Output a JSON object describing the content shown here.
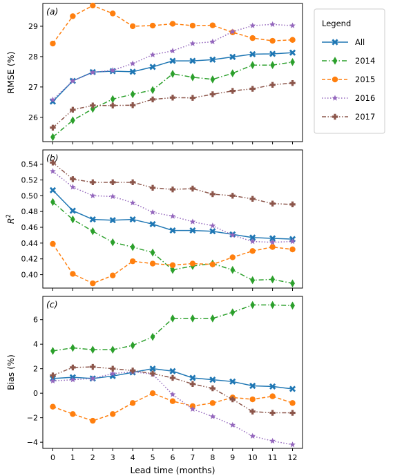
{
  "legend": {
    "title": "Legend"
  },
  "chart_data": [
    {
      "type": "line",
      "panel_label": "(a)",
      "ylabel": "RMSE (%)",
      "xlabel": "",
      "x": [
        0,
        1,
        2,
        3,
        4,
        5,
        6,
        7,
        8,
        9,
        10,
        11,
        12
      ],
      "ylim": [
        25.2,
        29.75
      ],
      "yticks": [
        26,
        27,
        28,
        29
      ],
      "xticks_labeled": false,
      "series": [
        {
          "name": "All",
          "values": [
            26.52,
            27.2,
            27.49,
            27.52,
            27.5,
            27.66,
            27.86,
            27.86,
            27.9,
            27.99,
            28.08,
            28.09,
            28.13
          ]
        },
        {
          "name": "2014",
          "values": [
            25.35,
            25.9,
            26.28,
            26.6,
            26.76,
            26.9,
            27.43,
            27.32,
            27.25,
            27.45,
            27.72,
            27.72,
            27.82
          ]
        },
        {
          "name": "2015",
          "values": [
            28.43,
            29.33,
            29.68,
            29.42,
            29.0,
            29.02,
            29.08,
            29.02,
            29.03,
            28.8,
            28.61,
            28.52,
            28.55
          ]
        },
        {
          "name": "2016",
          "values": [
            26.58,
            27.2,
            27.48,
            27.55,
            27.77,
            28.06,
            28.19,
            28.43,
            28.49,
            28.82,
            29.02,
            29.06,
            29.02
          ]
        },
        {
          "name": "2017",
          "values": [
            25.66,
            26.25,
            26.39,
            26.39,
            26.4,
            26.59,
            26.65,
            26.64,
            26.76,
            26.87,
            26.94,
            27.07,
            27.13
          ]
        }
      ]
    },
    {
      "type": "line",
      "panel_label": "(b)",
      "ylabel": "R²",
      "xlabel": "",
      "x": [
        0,
        1,
        2,
        3,
        4,
        5,
        6,
        7,
        8,
        9,
        10,
        11,
        12
      ],
      "ylim": [
        0.383,
        0.558
      ],
      "yticks": [
        0.4,
        0.42,
        0.44,
        0.46,
        0.48,
        0.5,
        0.52,
        0.54
      ],
      "ytick_labels": [
        "0.40",
        "0.42",
        "0.44",
        "0.46",
        "0.48",
        "0.50",
        "0.52",
        "0.54"
      ],
      "xticks_labeled": false,
      "series": [
        {
          "name": "All",
          "values": [
            0.507,
            0.481,
            0.47,
            0.469,
            0.47,
            0.464,
            0.456,
            0.456,
            0.455,
            0.451,
            0.447,
            0.446,
            0.445
          ]
        },
        {
          "name": "2014",
          "values": [
            0.492,
            0.47,
            0.455,
            0.441,
            0.435,
            0.428,
            0.406,
            0.411,
            0.414,
            0.406,
            0.393,
            0.394,
            0.389
          ]
        },
        {
          "name": "2015",
          "values": [
            0.439,
            0.401,
            0.389,
            0.399,
            0.417,
            0.414,
            0.412,
            0.414,
            0.413,
            0.422,
            0.43,
            0.435,
            0.432
          ]
        },
        {
          "name": "2016",
          "values": [
            0.531,
            0.511,
            0.5,
            0.499,
            0.491,
            0.479,
            0.474,
            0.467,
            0.462,
            0.45,
            0.442,
            0.441,
            0.442
          ]
        },
        {
          "name": "2017",
          "values": [
            0.542,
            0.521,
            0.517,
            0.517,
            0.517,
            0.51,
            0.508,
            0.509,
            0.502,
            0.5,
            0.496,
            0.49,
            0.489
          ]
        }
      ]
    },
    {
      "type": "line",
      "panel_label": "(c)",
      "ylabel": "Bias (%)",
      "xlabel": "Lead time (months)",
      "x": [
        0,
        1,
        2,
        3,
        4,
        5,
        6,
        7,
        8,
        9,
        10,
        11,
        12
      ],
      "ylim": [
        -4.5,
        7.9
      ],
      "yticks": [
        -4,
        -2,
        0,
        2,
        4,
        6
      ],
      "ytick_labels": [
        "−4",
        "−2",
        "0",
        "2",
        "4",
        "6"
      ],
      "xticks_labeled": true,
      "xtick_labels": [
        "0",
        "1",
        "2",
        "3",
        "4",
        "5",
        "6",
        "7",
        "8",
        "9",
        "10",
        "11",
        "12"
      ],
      "series": [
        {
          "name": "All",
          "values": [
            1.2,
            1.3,
            1.2,
            1.4,
            1.7,
            2.0,
            1.8,
            1.25,
            1.1,
            0.95,
            0.6,
            0.55,
            0.35
          ]
        },
        {
          "name": "2014",
          "values": [
            3.45,
            3.7,
            3.55,
            3.55,
            3.9,
            4.6,
            6.1,
            6.1,
            6.1,
            6.6,
            7.2,
            7.2,
            7.15
          ]
        },
        {
          "name": "2015",
          "values": [
            -1.1,
            -1.7,
            -2.25,
            -1.7,
            -0.8,
            0.0,
            -0.65,
            -1.05,
            -0.8,
            -0.35,
            -0.5,
            -0.25,
            -0.8
          ]
        },
        {
          "name": "2016",
          "values": [
            1.0,
            1.1,
            1.2,
            1.6,
            1.75,
            1.55,
            -0.1,
            -1.3,
            -1.9,
            -2.6,
            -3.5,
            -3.9,
            -4.2
          ]
        },
        {
          "name": "2017",
          "values": [
            1.45,
            2.1,
            2.15,
            2.0,
            1.85,
            1.6,
            1.25,
            0.75,
            0.4,
            -0.5,
            -1.5,
            -1.6,
            -1.6
          ]
        }
      ]
    }
  ],
  "series_styles": {
    "All": {
      "color": "#1f77b4",
      "dash": "",
      "marker": "x"
    },
    "2014": {
      "color": "#2ca02c",
      "dash": "7,3,1.5,3",
      "marker": "diamond"
    },
    "2015": {
      "color": "#ff7f0e",
      "dash": "5,3",
      "marker": "circle"
    },
    "2016": {
      "color": "#9467bd",
      "dash": "1.5,2.5",
      "marker": "star"
    },
    "2017": {
      "color": "#8c564b",
      "dash": "6,2.5,1.5,2.5,1.5,2.5",
      "marker": "plus"
    }
  }
}
